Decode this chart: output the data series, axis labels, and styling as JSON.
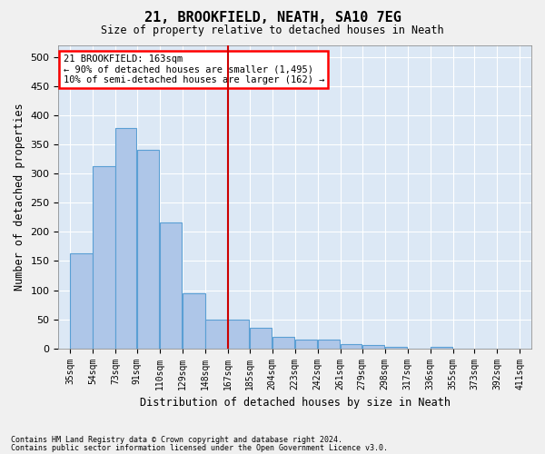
{
  "title": "21, BROOKFIELD, NEATH, SA10 7EG",
  "subtitle": "Size of property relative to detached houses in Neath",
  "xlabel": "Distribution of detached houses by size in Neath",
  "ylabel": "Number of detached properties",
  "footnote1": "Contains HM Land Registry data © Crown copyright and database right 2024.",
  "footnote2": "Contains public sector information licensed under the Open Government Licence v3.0.",
  "annotation_title": "21 BROOKFIELD: 163sqm",
  "annotation_line1": "← 90% of detached houses are smaller (1,495)",
  "annotation_line2": "10% of semi-detached houses are larger (162) →",
  "bar_color": "#aec6e8",
  "bar_edge_color": "#5a9fd4",
  "vline_color": "#cc0000",
  "categories": [
    "35sqm",
    "54sqm",
    "73sqm",
    "91sqm",
    "110sqm",
    "129sqm",
    "148sqm",
    "167sqm",
    "185sqm",
    "204sqm",
    "223sqm",
    "242sqm",
    "261sqm",
    "279sqm",
    "298sqm",
    "317sqm",
    "336sqm",
    "355sqm",
    "373sqm",
    "392sqm",
    "411sqm"
  ],
  "bin_edges": [
    35,
    54,
    73,
    91,
    110,
    129,
    148,
    167,
    185,
    204,
    223,
    242,
    261,
    279,
    298,
    317,
    336,
    355,
    373,
    392,
    411
  ],
  "values": [
    163,
    312,
    378,
    341,
    216,
    95,
    50,
    50,
    35,
    20,
    15,
    15,
    8,
    5,
    2,
    0,
    2,
    0,
    0,
    0
  ],
  "ylim": [
    0,
    520
  ],
  "yticks": [
    0,
    50,
    100,
    150,
    200,
    250,
    300,
    350,
    400,
    450,
    500
  ],
  "bg_color": "#dce8f5",
  "grid_color": "#ffffff",
  "fig_bg_color": "#f0f0f0"
}
